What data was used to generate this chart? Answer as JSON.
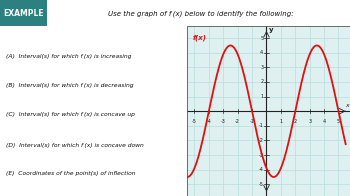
{
  "title_box_text": "EXAMPLE",
  "title_box_bg": "#2d8080",
  "title_box_fg": "#ffffff",
  "header_text": "Use the graph of f (x) below to identify the following:",
  "header_bg": "#dff0f0",
  "items": [
    "(A)  Interval(s) for which f (x) is increasing",
    "(B)  Interval(s) for which f (x) is decreasing",
    "(C)  Interval(s) for which f (x) is concave up",
    "(D)  Interval(s) for which f (x) is concave down",
    "(E)  Coordinates of the point(s) of inflection"
  ],
  "graph_xlim": [
    -5.5,
    5.8
  ],
  "graph_ylim": [
    -5.8,
    5.8
  ],
  "grid_color": "#b8dede",
  "curve_color": "#dd1111",
  "fx_label": "f(x)",
  "fx_label_color": "#dd1111",
  "axis_label_x": "x",
  "axis_label_y": "y",
  "bg_color": "#ffffff",
  "graph_bg": "#dff0f0",
  "header_divider": "#aaaaaa",
  "amplitude": 4.5,
  "period_b": 1.0471975511965976,
  "phase_shift": -1.0,
  "curve_sign": -1.0
}
